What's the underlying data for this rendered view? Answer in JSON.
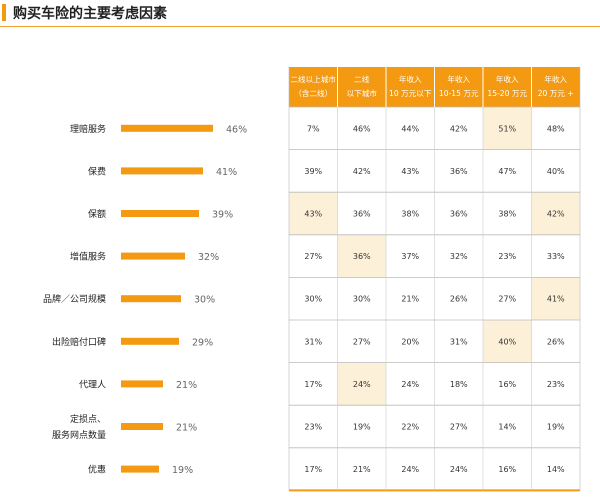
{
  "title": "购买车险的主要考虑因素",
  "chart_data": {
    "type": "bar",
    "categories": [
      "理赔服务",
      "保费",
      "保额",
      "增值服务",
      "品牌／公司规模",
      "出险赔付口碑",
      "代理人",
      "定损点、\n服务网点数量",
      "优惠"
    ],
    "values": [
      46,
      41,
      39,
      32,
      30,
      29,
      21,
      21,
      19
    ],
    "value_labels": [
      "46%",
      "41%",
      "39%",
      "32%",
      "30%",
      "29%",
      "21%",
      "21%",
      "19%"
    ],
    "colors": {
      "bar": "#f39a12",
      "header": "#f39a12",
      "highlight": "#fdf0d8",
      "grid": "#bbbbbb"
    },
    "table": {
      "columns": [
        [
          "二线以上城市",
          "（含二线）"
        ],
        [
          "二线",
          "以下城市"
        ],
        [
          "年收入",
          "10 万元以下"
        ],
        [
          "年收入",
          "10-15 万元"
        ],
        [
          "年收入",
          "15-20 万元"
        ],
        [
          "年收入",
          "20 万元 +"
        ]
      ],
      "rows": [
        [
          "7%",
          "46%",
          "44%",
          "42%",
          "51%",
          "48%"
        ],
        [
          "39%",
          "42%",
          "43%",
          "36%",
          "47%",
          "40%"
        ],
        [
          "43%",
          "36%",
          "38%",
          "36%",
          "38%",
          "42%"
        ],
        [
          "27%",
          "36%",
          "37%",
          "32%",
          "23%",
          "33%"
        ],
        [
          "30%",
          "30%",
          "21%",
          "26%",
          "27%",
          "41%"
        ],
        [
          "31%",
          "27%",
          "20%",
          "31%",
          "40%",
          "26%"
        ],
        [
          "17%",
          "24%",
          "24%",
          "18%",
          "16%",
          "23%"
        ],
        [
          "23%",
          "19%",
          "22%",
          "27%",
          "14%",
          "19%"
        ],
        [
          "17%",
          "21%",
          "24%",
          "24%",
          "16%",
          "14%"
        ]
      ],
      "highlighted_cells": [
        [
          0,
          4
        ],
        [
          2,
          0
        ],
        [
          2,
          5
        ],
        [
          3,
          1
        ],
        [
          4,
          5
        ],
        [
          5,
          4
        ],
        [
          6,
          1
        ]
      ]
    }
  }
}
